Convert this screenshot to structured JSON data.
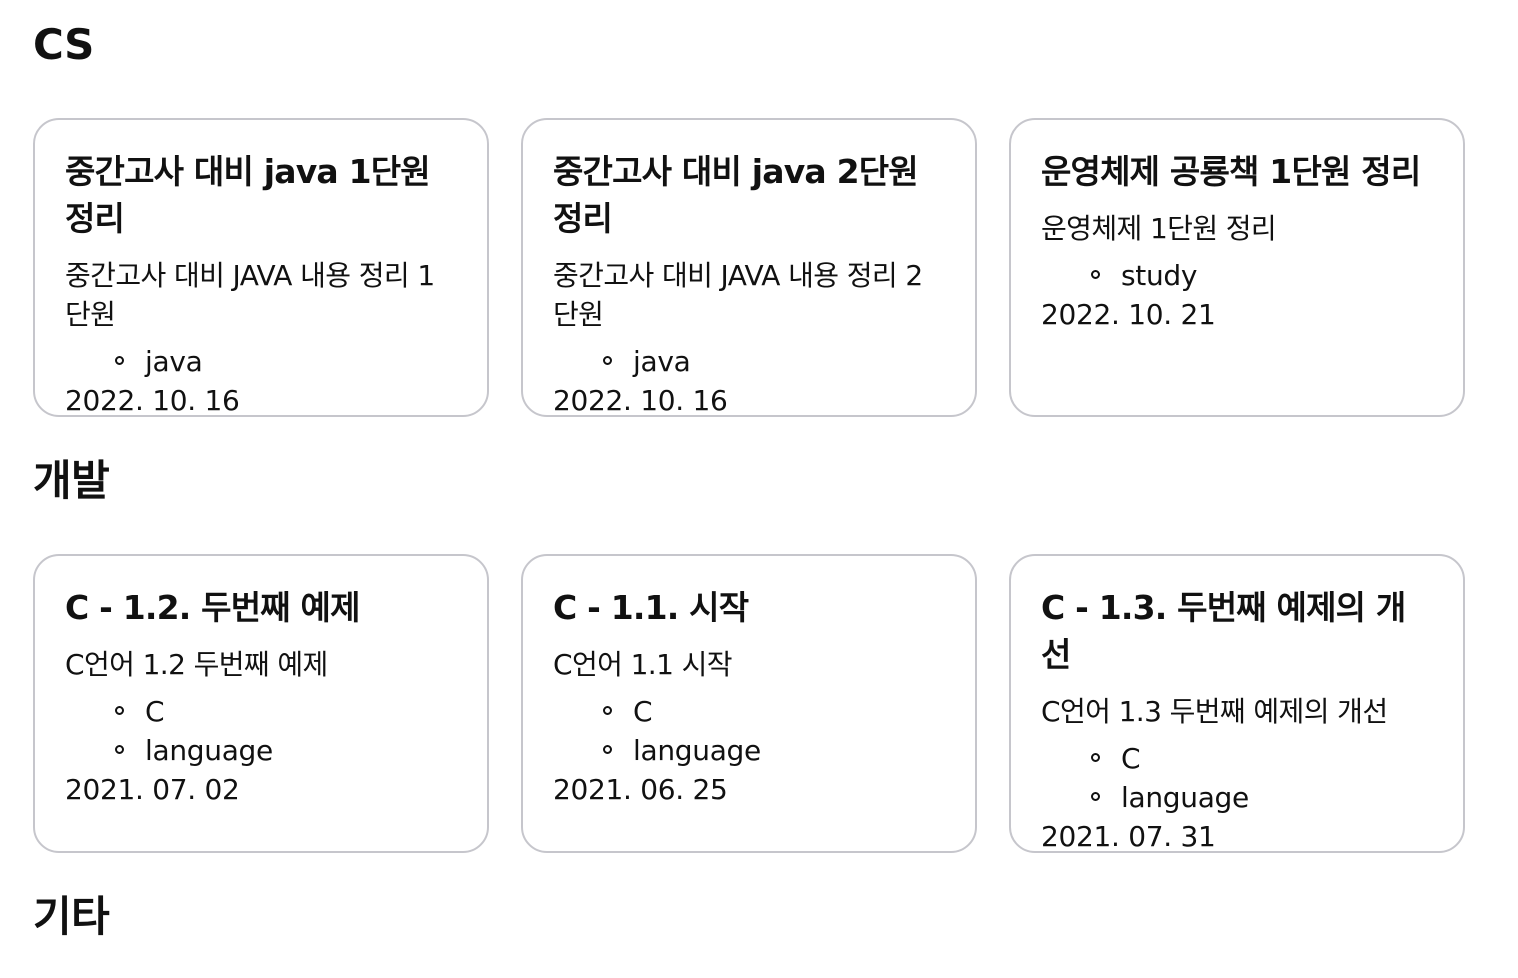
{
  "sections": [
    {
      "title": "CS",
      "posts": [
        {
          "title": "중간고사 대비 java 1단원 정리",
          "description": "중간고사 대비 JAVA 내용 정리 1단원",
          "tags": [
            "java"
          ],
          "date": "2022. 10. 16"
        },
        {
          "title": "중간고사 대비 java 2단원 정리",
          "description": "중간고사 대비 JAVA 내용 정리 2단원",
          "tags": [
            "java"
          ],
          "date": "2022. 10. 16"
        },
        {
          "title": "운영체제 공룡책 1단원 정리",
          "description": "운영체제 1단원 정리",
          "tags": [
            "study"
          ],
          "date": "2022. 10. 21"
        }
      ]
    },
    {
      "title": "개발",
      "posts": [
        {
          "title": "C - 1.2. 두번째 예제",
          "description": "C언어 1.2 두번째 예제",
          "tags": [
            "C",
            "language"
          ],
          "date": "2021. 07. 02"
        },
        {
          "title": "C - 1.1. 시작",
          "description": "C언어 1.1 시작",
          "tags": [
            "C",
            "language"
          ],
          "date": "2021. 06. 25"
        },
        {
          "title": "C - 1.3. 두번째 예제의 개선",
          "description": "C언어 1.3 두번째 예제의 개선",
          "tags": [
            "C",
            "language"
          ],
          "date": "2021. 07. 31"
        }
      ]
    },
    {
      "title": "기타",
      "posts": []
    }
  ]
}
